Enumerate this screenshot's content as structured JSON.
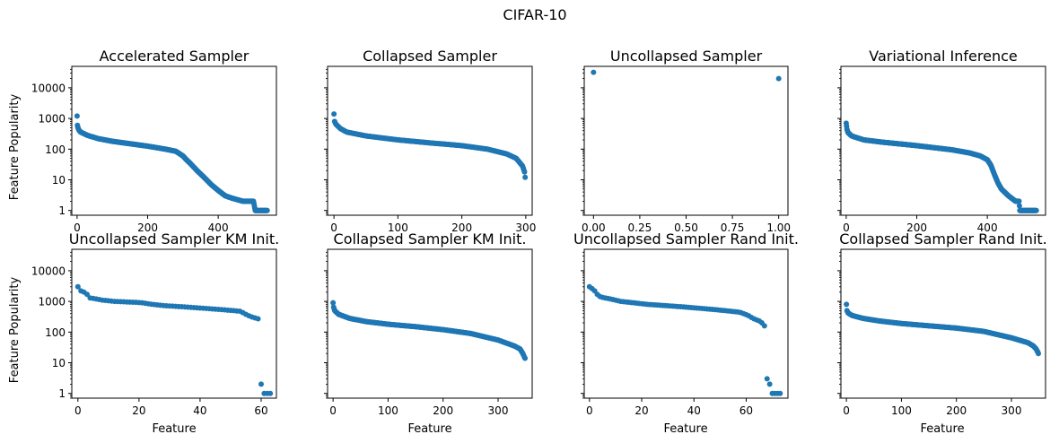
{
  "suptitle": "CIFAR-10",
  "ylabel": "Feature Popularity",
  "xlabel": "Feature",
  "colors": {
    "marker": "#1f77b4",
    "axis": "#000000",
    "background": "#ffffff"
  },
  "chart_data": [
    {
      "type": "scatter",
      "title": "Accelerated Sampler",
      "yscale": "log",
      "ylim": [
        0.7,
        50000
      ],
      "xlim": [
        -15,
        565
      ],
      "xticks": [
        0,
        200,
        400
      ],
      "xticklabels": [
        "0",
        "200",
        "400"
      ],
      "yticks": [
        1,
        10,
        100,
        1000,
        10000
      ],
      "yticklabels": [
        "1",
        "10",
        "100",
        "1000",
        "10000"
      ],
      "n_points": 540,
      "curve": [
        [
          0,
          1200
        ],
        [
          1,
          600
        ],
        [
          2,
          520
        ],
        [
          5,
          420
        ],
        [
          10,
          360
        ],
        [
          30,
          280
        ],
        [
          60,
          220
        ],
        [
          100,
          180
        ],
        [
          150,
          150
        ],
        [
          200,
          125
        ],
        [
          250,
          100
        ],
        [
          280,
          85
        ],
        [
          300,
          60
        ],
        [
          310,
          45
        ],
        [
          320,
          35
        ],
        [
          340,
          20
        ],
        [
          360,
          12
        ],
        [
          380,
          7
        ],
        [
          400,
          4.5
        ],
        [
          420,
          3
        ],
        [
          440,
          2.5
        ],
        [
          470,
          2
        ],
        [
          500,
          2
        ],
        [
          505,
          1
        ],
        [
          540,
          1
        ]
      ]
    },
    {
      "type": "scatter",
      "title": "Collapsed Sampler",
      "yscale": "log",
      "ylim": [
        0.7,
        50000
      ],
      "xlim": [
        -10,
        310
      ],
      "xticks": [
        0,
        100,
        200,
        300
      ],
      "xticklabels": [
        "0",
        "100",
        "200",
        "300"
      ],
      "yticks": [
        1,
        10,
        100,
        1000,
        10000
      ],
      "yticklabels": [],
      "n_points": 300,
      "curve": [
        [
          0,
          1400
        ],
        [
          1,
          800
        ],
        [
          3,
          650
        ],
        [
          10,
          470
        ],
        [
          20,
          360
        ],
        [
          50,
          270
        ],
        [
          100,
          200
        ],
        [
          150,
          160
        ],
        [
          200,
          130
        ],
        [
          240,
          100
        ],
        [
          270,
          70
        ],
        [
          285,
          50
        ],
        [
          295,
          28
        ],
        [
          298,
          18
        ],
        [
          299,
          12
        ],
        [
          300,
          8
        ]
      ]
    },
    {
      "type": "scatter",
      "title": "Uncollapsed Sampler",
      "yscale": "log",
      "ylim": [
        0.7,
        50000
      ],
      "xlim": [
        -0.05,
        1.05
      ],
      "xticks": [
        0,
        0.25,
        0.5,
        0.75,
        1.0
      ],
      "xticklabels": [
        "0.00",
        "0.25",
        "0.50",
        "0.75",
        "1.00"
      ],
      "yticks": [
        1,
        10,
        100,
        1000,
        10000
      ],
      "yticklabels": [],
      "points": [
        [
          0,
          32000
        ],
        [
          1,
          20000
        ]
      ]
    },
    {
      "type": "scatter",
      "title": "Variational Inference",
      "yscale": "log",
      "ylim": [
        0.7,
        50000
      ],
      "xlim": [
        -15,
        565
      ],
      "xticks": [
        0,
        200,
        400
      ],
      "xticklabels": [
        "0",
        "200",
        "400"
      ],
      "yticks": [
        1,
        10,
        100,
        1000,
        10000
      ],
      "yticklabels": [],
      "n_points": 540,
      "curve": [
        [
          0,
          700
        ],
        [
          2,
          450
        ],
        [
          5,
          350
        ],
        [
          15,
          270
        ],
        [
          50,
          200
        ],
        [
          100,
          170
        ],
        [
          200,
          130
        ],
        [
          300,
          95
        ],
        [
          350,
          75
        ],
        [
          380,
          60
        ],
        [
          400,
          45
        ],
        [
          410,
          30
        ],
        [
          420,
          15
        ],
        [
          430,
          8
        ],
        [
          440,
          5
        ],
        [
          460,
          3
        ],
        [
          480,
          2
        ],
        [
          490,
          2
        ],
        [
          492,
          1
        ],
        [
          540,
          1
        ]
      ]
    },
    {
      "type": "scatter",
      "title": "Uncollapsed Sampler KM Init.",
      "yscale": "log",
      "ylim": [
        0.7,
        50000
      ],
      "xlim": [
        -2,
        65
      ],
      "xticks": [
        0,
        20,
        40,
        60
      ],
      "xticklabels": [
        "0",
        "20",
        "40",
        "60"
      ],
      "yticks": [
        1,
        10,
        100,
        1000,
        10000
      ],
      "yticklabels": [
        "1",
        "10",
        "100",
        "1000",
        "10000"
      ],
      "points": [
        [
          0,
          3000
        ],
        [
          1,
          2200
        ],
        [
          2,
          2000
        ],
        [
          3,
          1700
        ],
        [
          4,
          1300
        ],
        [
          5,
          1250
        ],
        [
          6,
          1200
        ],
        [
          7,
          1150
        ],
        [
          8,
          1100
        ],
        [
          9,
          1080
        ],
        [
          10,
          1050
        ],
        [
          11,
          1020
        ],
        [
          12,
          1000
        ],
        [
          13,
          990
        ],
        [
          14,
          980
        ],
        [
          15,
          970
        ],
        [
          16,
          960
        ],
        [
          17,
          950
        ],
        [
          18,
          940
        ],
        [
          19,
          930
        ],
        [
          20,
          920
        ],
        [
          21,
          900
        ],
        [
          22,
          870
        ],
        [
          23,
          840
        ],
        [
          24,
          810
        ],
        [
          25,
          790
        ],
        [
          26,
          770
        ],
        [
          27,
          750
        ],
        [
          28,
          730
        ],
        [
          29,
          720
        ],
        [
          30,
          710
        ],
        [
          31,
          700
        ],
        [
          32,
          690
        ],
        [
          33,
          680
        ],
        [
          34,
          670
        ],
        [
          35,
          660
        ],
        [
          36,
          650
        ],
        [
          37,
          640
        ],
        [
          38,
          630
        ],
        [
          39,
          620
        ],
        [
          40,
          610
        ],
        [
          41,
          600
        ],
        [
          42,
          590
        ],
        [
          43,
          580
        ],
        [
          44,
          570
        ],
        [
          45,
          560
        ],
        [
          46,
          550
        ],
        [
          47,
          540
        ],
        [
          48,
          530
        ],
        [
          49,
          520
        ],
        [
          50,
          510
        ],
        [
          51,
          500
        ],
        [
          52,
          490
        ],
        [
          53,
          480
        ],
        [
          54,
          430
        ],
        [
          55,
          380
        ],
        [
          56,
          340
        ],
        [
          57,
          310
        ],
        [
          58,
          290
        ],
        [
          59,
          270
        ],
        [
          60,
          2
        ],
        [
          61,
          1
        ],
        [
          62,
          1
        ],
        [
          63,
          1
        ]
      ]
    },
    {
      "type": "scatter",
      "title": "Collapsed Sampler KM Init.",
      "yscale": "log",
      "ylim": [
        0.7,
        50000
      ],
      "xlim": [
        -10,
        362
      ],
      "xticks": [
        0,
        100,
        200,
        300
      ],
      "xticklabels": [
        "0",
        "100",
        "200",
        "300"
      ],
      "yticks": [
        1,
        10,
        100,
        1000,
        10000
      ],
      "yticklabels": [],
      "n_points": 350,
      "curve": [
        [
          0,
          900
        ],
        [
          1,
          650
        ],
        [
          3,
          500
        ],
        [
          10,
          380
        ],
        [
          30,
          280
        ],
        [
          60,
          220
        ],
        [
          100,
          180
        ],
        [
          150,
          150
        ],
        [
          200,
          120
        ],
        [
          250,
          90
        ],
        [
          300,
          55
        ],
        [
          330,
          35
        ],
        [
          340,
          28
        ],
        [
          345,
          20
        ],
        [
          348,
          15
        ],
        [
          350,
          13
        ]
      ]
    },
    {
      "type": "scatter",
      "title": "Uncollapsed Sampler Rand Init.",
      "yscale": "log",
      "ylim": [
        0.7,
        50000
      ],
      "xlim": [
        -2,
        76
      ],
      "xticks": [
        0,
        20,
        40,
        60
      ],
      "xticklabels": [
        "0",
        "20",
        "40",
        "60"
      ],
      "yticks": [
        1,
        10,
        100,
        1000,
        10000
      ],
      "yticklabels": [],
      "points": [
        [
          0,
          3000
        ],
        [
          1,
          2600
        ],
        [
          2,
          2200
        ],
        [
          3,
          1700
        ],
        [
          4,
          1450
        ],
        [
          5,
          1350
        ],
        [
          6,
          1300
        ],
        [
          7,
          1250
        ],
        [
          8,
          1200
        ],
        [
          9,
          1150
        ],
        [
          10,
          1100
        ],
        [
          11,
          1050
        ],
        [
          12,
          1000
        ],
        [
          13,
          980
        ],
        [
          14,
          960
        ],
        [
          15,
          940
        ],
        [
          16,
          920
        ],
        [
          17,
          900
        ],
        [
          18,
          880
        ],
        [
          19,
          860
        ],
        [
          20,
          840
        ],
        [
          21,
          820
        ],
        [
          22,
          800
        ],
        [
          23,
          790
        ],
        [
          24,
          780
        ],
        [
          25,
          770
        ],
        [
          26,
          760
        ],
        [
          27,
          750
        ],
        [
          28,
          740
        ],
        [
          29,
          730
        ],
        [
          30,
          720
        ],
        [
          31,
          710
        ],
        [
          32,
          700
        ],
        [
          33,
          690
        ],
        [
          34,
          680
        ],
        [
          35,
          670
        ],
        [
          36,
          660
        ],
        [
          37,
          650
        ],
        [
          38,
          640
        ],
        [
          39,
          630
        ],
        [
          40,
          620
        ],
        [
          41,
          610
        ],
        [
          42,
          600
        ],
        [
          43,
          590
        ],
        [
          44,
          580
        ],
        [
          45,
          570
        ],
        [
          46,
          560
        ],
        [
          47,
          550
        ],
        [
          48,
          540
        ],
        [
          49,
          530
        ],
        [
          50,
          520
        ],
        [
          51,
          510
        ],
        [
          52,
          500
        ],
        [
          53,
          490
        ],
        [
          54,
          480
        ],
        [
          55,
          470
        ],
        [
          56,
          460
        ],
        [
          57,
          450
        ],
        [
          58,
          430
        ],
        [
          59,
          400
        ],
        [
          60,
          370
        ],
        [
          61,
          340
        ],
        [
          62,
          300
        ],
        [
          63,
          270
        ],
        [
          64,
          250
        ],
        [
          65,
          230
        ],
        [
          66,
          200
        ],
        [
          67,
          160
        ],
        [
          68,
          3
        ],
        [
          69,
          2
        ],
        [
          70,
          1
        ],
        [
          71,
          1
        ],
        [
          72,
          1
        ],
        [
          73,
          1
        ]
      ]
    },
    {
      "type": "scatter",
      "title": "Collapsed Sampler Rand Init.",
      "yscale": "log",
      "ylim": [
        0.7,
        50000
      ],
      "xlim": [
        -10,
        362
      ],
      "xticks": [
        0,
        100,
        200,
        300
      ],
      "xticklabels": [
        "0",
        "100",
        "200",
        "300"
      ],
      "yticks": [
        1,
        10,
        100,
        1000,
        10000
      ],
      "yticklabels": [],
      "n_points": 350,
      "curve": [
        [
          0,
          800
        ],
        [
          1,
          500
        ],
        [
          3,
          420
        ],
        [
          10,
          350
        ],
        [
          30,
          280
        ],
        [
          60,
          230
        ],
        [
          100,
          190
        ],
        [
          150,
          160
        ],
        [
          200,
          135
        ],
        [
          250,
          105
        ],
        [
          300,
          65
        ],
        [
          330,
          45
        ],
        [
          340,
          35
        ],
        [
          345,
          28
        ],
        [
          348,
          22
        ],
        [
          350,
          18
        ]
      ]
    }
  ]
}
